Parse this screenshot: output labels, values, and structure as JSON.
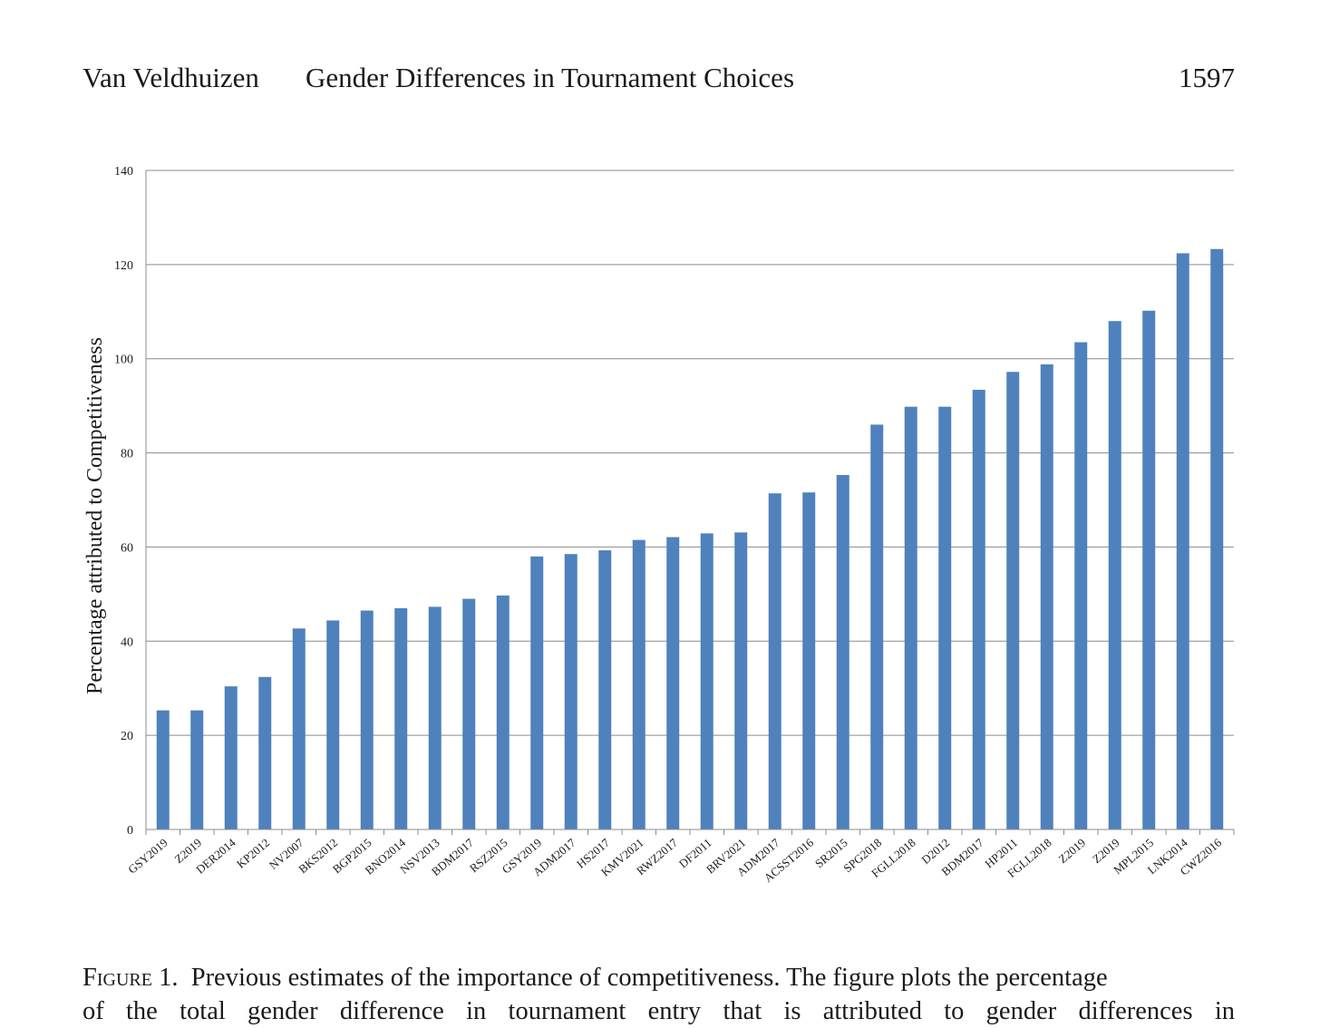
{
  "header": {
    "author": "Van Veldhuizen",
    "title": "Gender Differences in Tournament Choices",
    "page_number": "1597"
  },
  "chart_data": {
    "type": "bar",
    "ylabel": "Percentage attributed to Competitiveness",
    "ylim": [
      0,
      140
    ],
    "yticks": [
      0,
      20,
      40,
      60,
      80,
      100,
      120,
      140
    ],
    "grid": true,
    "bar_color": "#4f81bd",
    "categories": [
      "GSY2019",
      "Z2019",
      "DER2014",
      "KP2012",
      "NV2007",
      "BKS2012",
      "BGP2015",
      "BNO2014",
      "NSV2013",
      "BDM2017",
      "RSZ2015",
      "GSY2019",
      "ADM2017",
      "HS2017",
      "KMV2021",
      "RWZ2017",
      "DF2011",
      "BRV2021",
      "ADM2017",
      "ACSST2016",
      "SR2015",
      "SPG2018",
      "FGLL2018",
      "D2012",
      "BDM2017",
      "HP2011",
      "FGLL2018",
      "Z2019",
      "Z2019",
      "MPL2015",
      "LNK2014",
      "CWZ2016"
    ],
    "values": [
      25.3,
      25.3,
      30.4,
      32.4,
      42.7,
      44.4,
      46.5,
      47.0,
      47.3,
      49.0,
      49.7,
      58.0,
      58.5,
      59.3,
      61.5,
      62.1,
      62.9,
      63.1,
      71.4,
      71.6,
      75.3,
      86.0,
      89.8,
      89.8,
      93.4,
      97.2,
      98.8,
      103.5,
      108.0,
      110.2,
      122.4,
      123.3
    ]
  },
  "caption": {
    "figure_label": "Figure 1.",
    "line1": "Previous estimates of the importance of competitiveness. The figure plots the percentage",
    "line2": "of the total gender difference in tournament entry that is attributed to gender differences in"
  }
}
